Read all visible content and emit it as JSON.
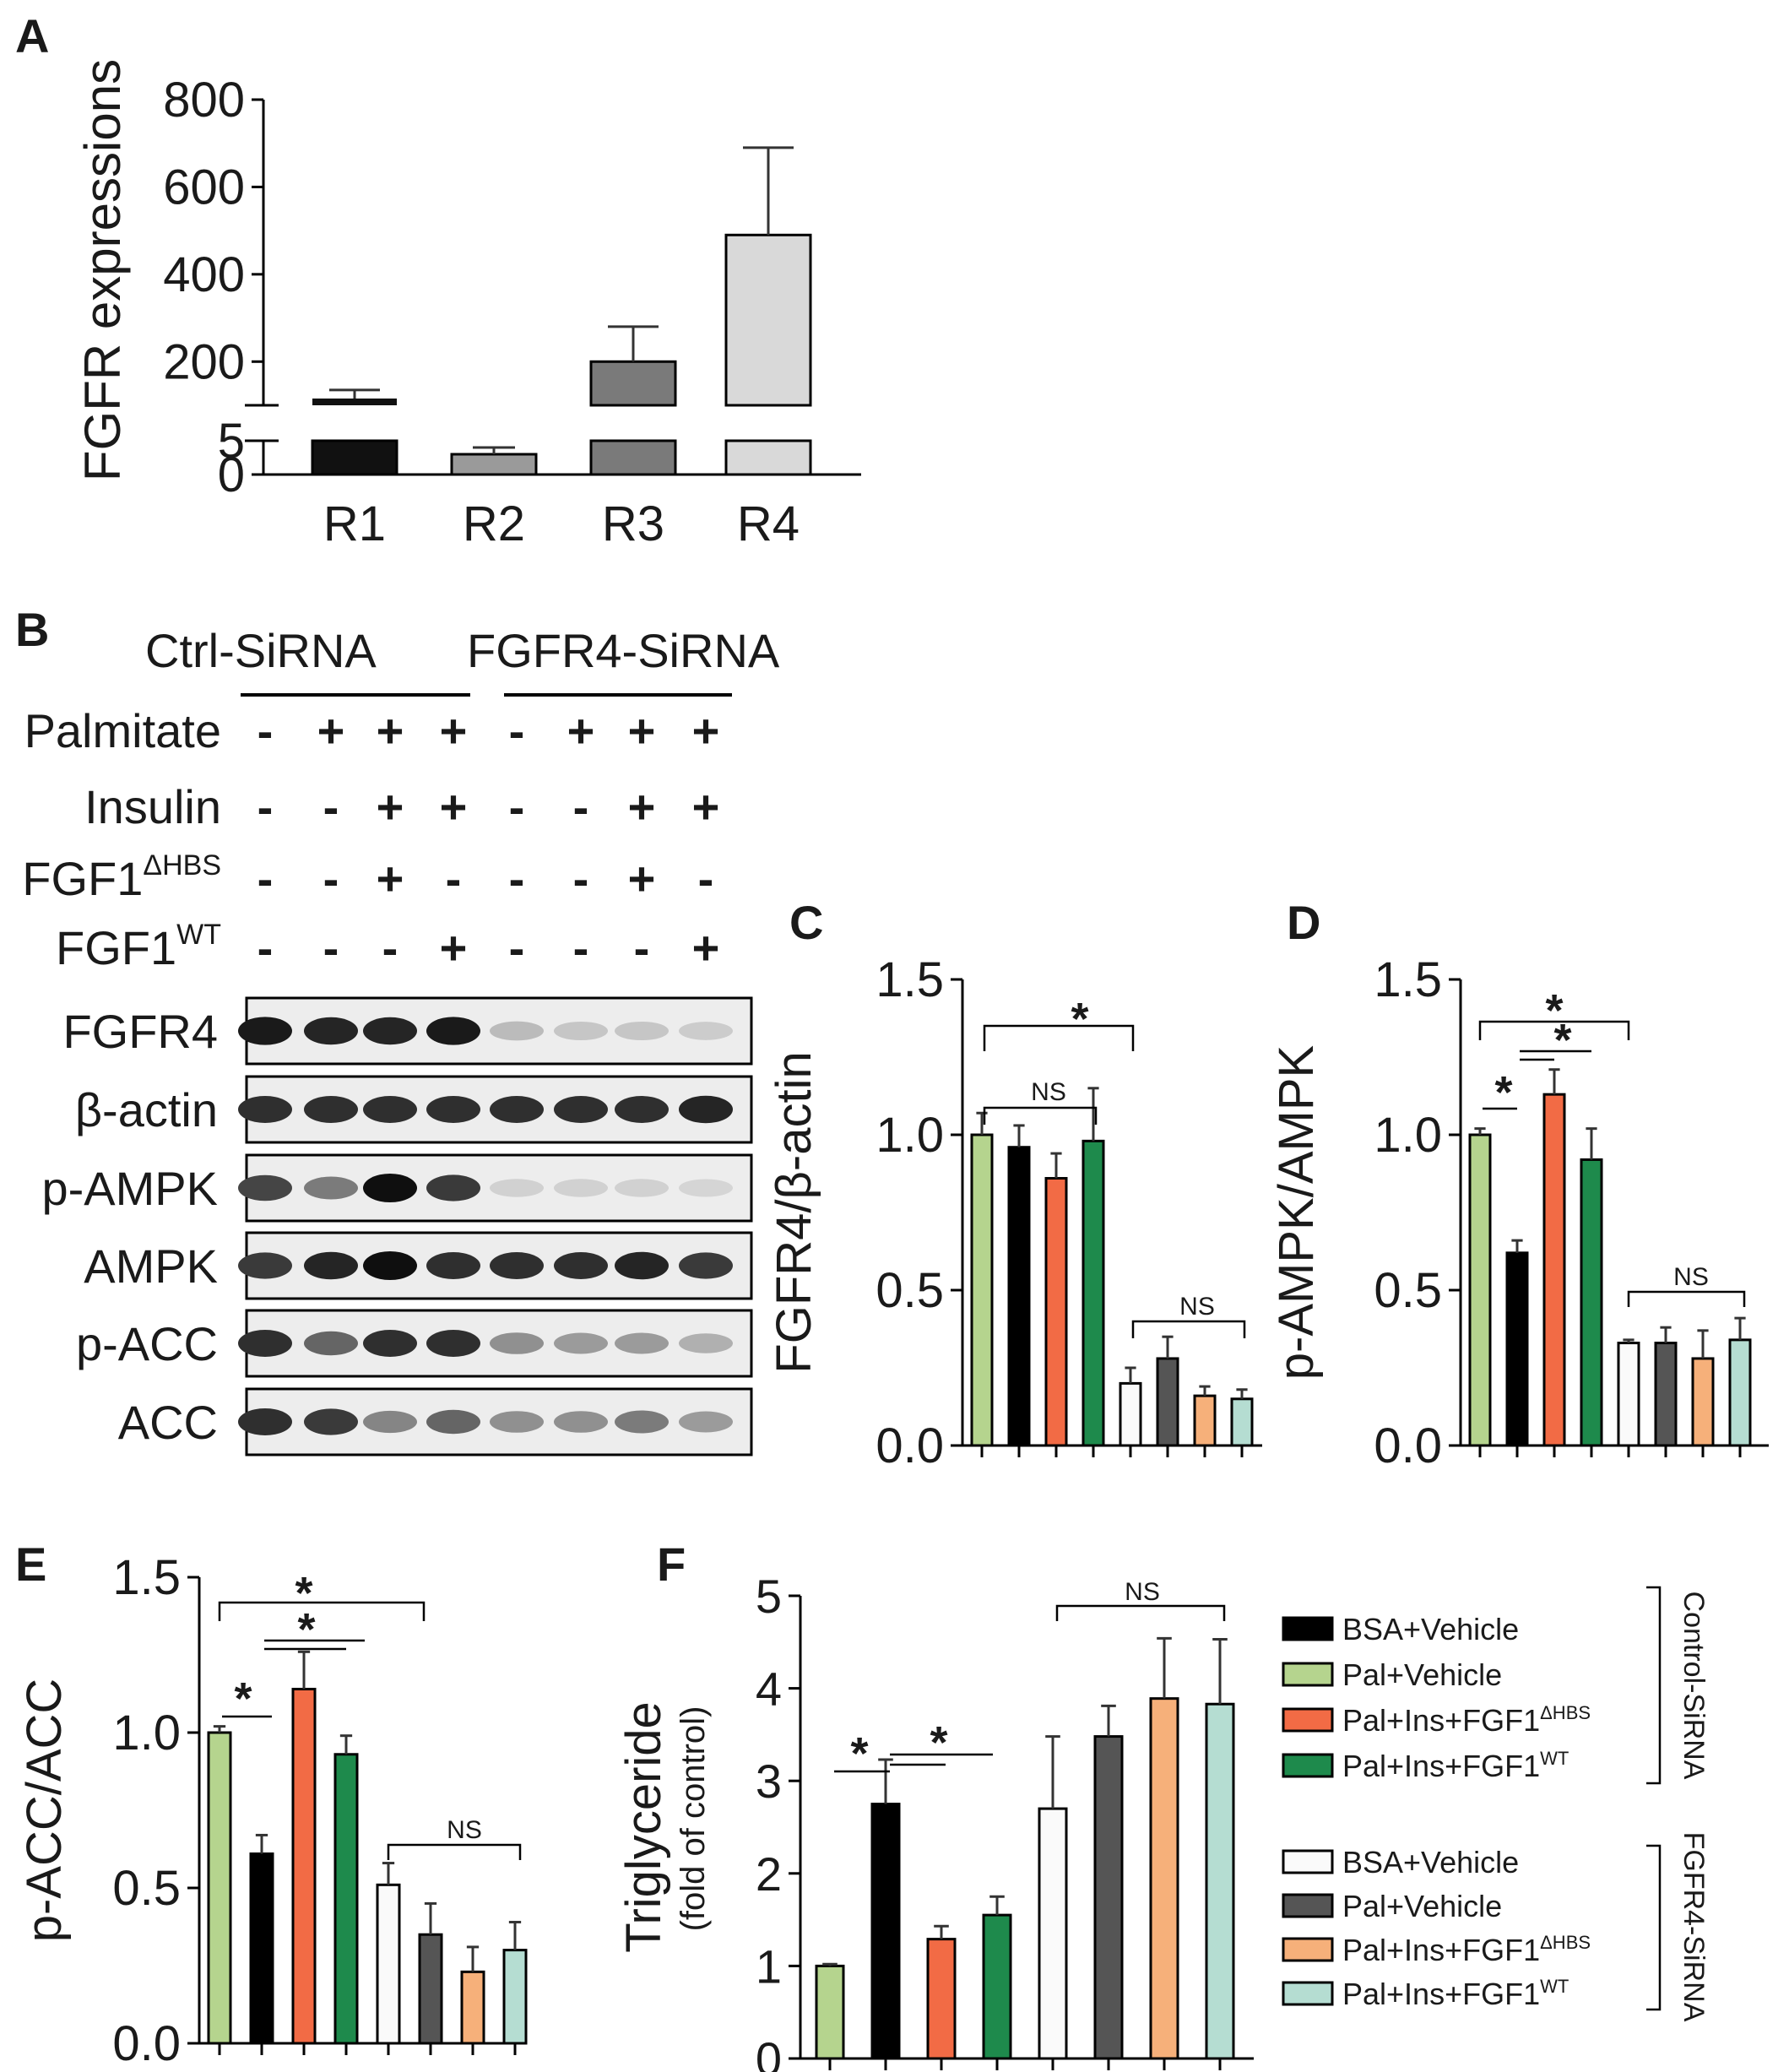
{
  "colors": {
    "light_green": "#b5d48e",
    "black": "#000000",
    "orange_red": "#f26b45",
    "dark_green": "#1e8a4c",
    "white": "#fafafa",
    "dark_gray": "#555555",
    "light_orange": "#f6b07a",
    "light_teal": "#b5ddd2",
    "r_gray_1": "#111111",
    "r_gray_2": "#9a9a9a",
    "r_gray_3": "#7a7a7a",
    "r_gray_4": "#d9d9d9"
  },
  "panel_labels": {
    "a": "A",
    "b": "B",
    "c": "C",
    "d": "D",
    "e": "E",
    "f": "F"
  },
  "chart_data": [
    {
      "id": "A",
      "type": "bar",
      "ylabel": "FGFR expressions",
      "categories": [
        "R1",
        "R2",
        "R3",
        "R4"
      ],
      "values": [
        100,
        3,
        200,
        490
      ],
      "errors": [
        40,
        1,
        80,
        200
      ],
      "broken_axis": {
        "lower_ticks": [
          "0",
          "5"
        ],
        "upper_ticks": [
          "200",
          "400",
          "600",
          "800"
        ]
      },
      "ylim": [
        0,
        800
      ]
    },
    {
      "id": "C",
      "type": "bar",
      "ylabel": "FGFR4/β-actin",
      "ylim": [
        0,
        1.5
      ],
      "yticks": [
        "0.0",
        "0.5",
        "1.0",
        "1.5"
      ],
      "values": [
        1.0,
        0.96,
        0.86,
        0.98,
        0.2,
        0.28,
        0.16,
        0.15
      ],
      "errors": [
        0.07,
        0.07,
        0.08,
        0.17,
        0.05,
        0.07,
        0.03,
        0.03
      ],
      "annotations": [
        "*",
        "NS",
        "NS"
      ]
    },
    {
      "id": "D",
      "type": "bar",
      "ylabel": "p-AMPK/AMPK",
      "ylim": [
        0,
        1.5
      ],
      "yticks": [
        "0.0",
        "0.5",
        "1.0",
        "1.5"
      ],
      "values": [
        1.0,
        0.62,
        1.13,
        0.92,
        0.33,
        0.33,
        0.28,
        0.34
      ],
      "errors": [
        0.02,
        0.04,
        0.08,
        0.1,
        0.01,
        0.05,
        0.09,
        0.07
      ],
      "annotations": [
        "*",
        "*",
        "*",
        "NS"
      ]
    },
    {
      "id": "E",
      "type": "bar",
      "ylabel": "p-ACC/ACC",
      "ylim": [
        0,
        1.5
      ],
      "yticks": [
        "0.0",
        "0.5",
        "1.0",
        "1.5"
      ],
      "values": [
        1.0,
        0.61,
        1.14,
        0.93,
        0.51,
        0.35,
        0.23,
        0.3
      ],
      "errors": [
        0.02,
        0.06,
        0.12,
        0.06,
        0.07,
        0.1,
        0.08,
        0.09
      ],
      "annotations": [
        "*",
        "*",
        "*",
        "NS"
      ]
    },
    {
      "id": "F",
      "type": "bar",
      "ylabel": "Triglyceride",
      "ylabel2": "(fold of control)",
      "ylim": [
        0,
        5
      ],
      "yticks": [
        "0",
        "1",
        "2",
        "3",
        "4",
        "5"
      ],
      "values": [
        1.0,
        2.75,
        1.29,
        1.55,
        2.7,
        3.48,
        3.89,
        3.83
      ],
      "errors": [
        0.02,
        0.48,
        0.14,
        0.2,
        0.78,
        0.33,
        0.65,
        0.7
      ],
      "annotations": [
        "*",
        "*",
        "NS"
      ]
    }
  ],
  "legend": {
    "control": [
      "BSA+Vehicle",
      "Pal+Vehicle",
      "Pal+Ins+FGF1",
      "Pal+Ins+FGF1"
    ],
    "fgfr4": [
      "BSA+Vehicle",
      "Pal+Vehicle",
      "Pal+Ins+FGF1",
      "Pal+Ins+FGF1"
    ],
    "sup_hbs": "ΔHBS",
    "sup_wt": "WT",
    "group1": "Control-SiRNA",
    "group2": "FGFR4-SiRNA"
  },
  "blot": {
    "group1": "Ctrl-SiRNA",
    "group2": "FGFR4-SiRNA",
    "conditions": [
      {
        "label": "Palmitate",
        "sup": "",
        "signs": [
          "-",
          "+",
          "+",
          "+",
          "-",
          "+",
          "+",
          "+"
        ]
      },
      {
        "label": "Insulin",
        "sup": "",
        "signs": [
          "-",
          "-",
          "+",
          "+",
          "-",
          "-",
          "+",
          "+"
        ]
      },
      {
        "label": "FGF1",
        "sup": "ΔHBS",
        "signs": [
          "-",
          "-",
          "+",
          "-",
          "-",
          "-",
          "+",
          "-"
        ]
      },
      {
        "label": "FGF1",
        "sup": "WT",
        "signs": [
          "-",
          "-",
          "-",
          "+",
          "-",
          "-",
          "-",
          "+"
        ]
      }
    ],
    "rows": [
      {
        "label": "FGFR4",
        "intensity": [
          0.95,
          0.9,
          0.9,
          0.95,
          0.2,
          0.15,
          0.15,
          0.12
        ]
      },
      {
        "label": "β-actin",
        "intensity": [
          0.85,
          0.85,
          0.85,
          0.85,
          0.85,
          0.85,
          0.85,
          0.9
        ]
      },
      {
        "label": "p-AMPK",
        "intensity": [
          0.75,
          0.5,
          1.0,
          0.8,
          0.1,
          0.1,
          0.1,
          0.08
        ]
      },
      {
        "label": "AMPK",
        "intensity": [
          0.8,
          0.9,
          1.0,
          0.85,
          0.85,
          0.85,
          0.9,
          0.8
        ]
      },
      {
        "label": "p-ACC",
        "intensity": [
          0.85,
          0.6,
          0.85,
          0.85,
          0.4,
          0.35,
          0.35,
          0.25
        ]
      },
      {
        "label": "ACC",
        "intensity": [
          0.85,
          0.8,
          0.45,
          0.6,
          0.4,
          0.4,
          0.5,
          0.35
        ]
      }
    ]
  }
}
